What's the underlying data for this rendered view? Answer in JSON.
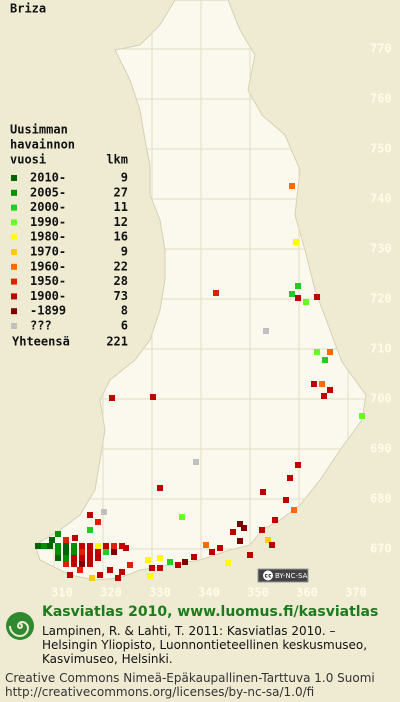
{
  "map": {
    "title": "Briza",
    "y_labels": [
      770,
      760,
      750,
      740,
      730,
      720,
      710,
      700,
      690,
      680,
      670
    ],
    "x_labels": [
      310,
      320,
      330,
      340,
      350,
      360,
      370
    ],
    "badge": [
      "cc",
      "BY-NC-SA"
    ]
  },
  "legend": {
    "heading": [
      "Uusimman",
      "havainnon"
    ],
    "column_headers": [
      "vuosi",
      "lkm"
    ],
    "rows": [
      {
        "label": "2010-",
        "count": 9,
        "color": "#006400"
      },
      {
        "label": "2005-",
        "count": 27,
        "color": "#009000"
      },
      {
        "label": "2000-",
        "count": 11,
        "color": "#22cc22"
      },
      {
        "label": "1990-",
        "count": 12,
        "color": "#66ff22"
      },
      {
        "label": "1980-",
        "count": 16,
        "color": "#ffff00"
      },
      {
        "label": "1970-",
        "count": 9,
        "color": "#ffcc00"
      },
      {
        "label": "1960-",
        "count": 22,
        "color": "#ff6a00"
      },
      {
        "label": "1950-",
        "count": 28,
        "color": "#e02000"
      },
      {
        "label": "1900-",
        "count": 73,
        "color": "#c00000"
      },
      {
        "label": "-1899",
        "count": 8,
        "color": "#800000"
      },
      {
        "label": "???",
        "count": 6,
        "color": "#c0c0c0"
      }
    ],
    "total_label": "Yhteensä",
    "total": 221
  },
  "footer": {
    "title": "Kasviatlas 2010, www.luomus.fi/kasviatlas",
    "citation": [
      "Lampinen, R. & Lahti, T. 2011: Kasviatlas 2010. –",
      "Helsingin Yliopisto, Luonnontieteellinen keskusmuseo,",
      "Kasvimuseo, Helsinki."
    ],
    "license": [
      "Creative Commons Nimeä-Epäkaupallinen-Tarttuva 1.0 Suomi",
      "http://creativecommons.org/licenses/by-nc-sa/1.0/fi"
    ]
  }
}
